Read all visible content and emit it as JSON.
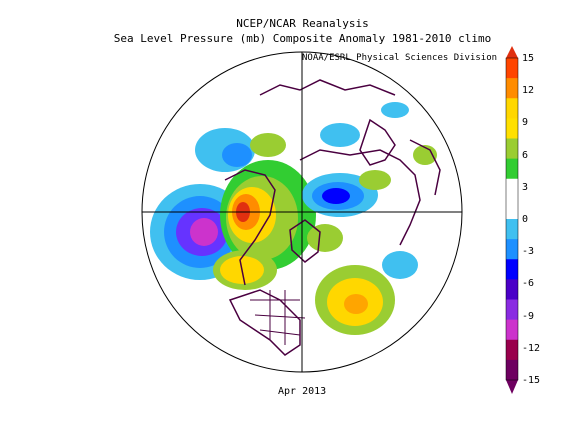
{
  "title_line1": "NCEP/NCAR Reanalysis",
  "title_line2": "Sea Level Pressure (mb) Composite Anomaly 1981-2010 climo",
  "credit": "NOAA/ESRL Physical Sciences Division",
  "date_label": "Apr 2013",
  "colorbar": {
    "ticks": [
      "15",
      "12",
      "9",
      "6",
      "3",
      "0",
      "-3",
      "-6",
      "-9",
      "-12",
      "-15"
    ],
    "colors": [
      "#ff4500",
      "#ff8c00",
      "#ffd700",
      "#ffe000",
      "#9acd32",
      "#32cd32",
      "#ffffff",
      "#ffffff",
      "#40c0f0",
      "#1e90ff",
      "#0000ff",
      "#4b00c8",
      "#8a2be2",
      "#cc33cc",
      "#99004c",
      "#6e0060"
    ]
  },
  "map_regions": [
    {
      "name": "pacific-low-anomaly",
      "color": "#800080"
    },
    {
      "name": "north-america-high-anomaly",
      "color": "#ff4500"
    },
    {
      "name": "siberia-low-anomaly",
      "color": "#0000ff"
    },
    {
      "name": "atlantic-high-anomaly",
      "color": "#ffd700"
    }
  ]
}
